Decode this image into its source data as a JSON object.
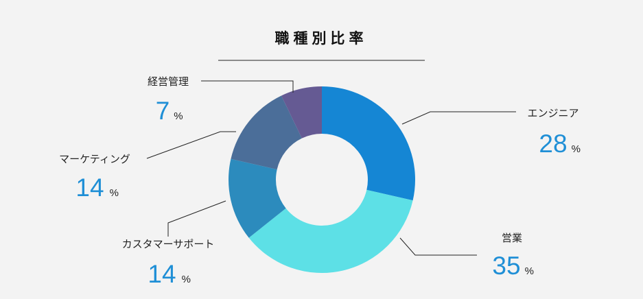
{
  "chart_data": {
    "type": "pie",
    "title": "職種別比率",
    "donut": true,
    "unit": "%",
    "categories": [
      "エンジニア",
      "営業",
      "カスタマーサポート",
      "マーケティング",
      "経営管理"
    ],
    "values": [
      28,
      35,
      14,
      14,
      7
    ],
    "value_labels": [
      "28",
      "35",
      "14 ",
      "14 ",
      "7"
    ],
    "colors": [
      "#1586d4",
      "#5de0e6",
      "#2c8bbd",
      "#4b6e99",
      "#655a93"
    ]
  }
}
